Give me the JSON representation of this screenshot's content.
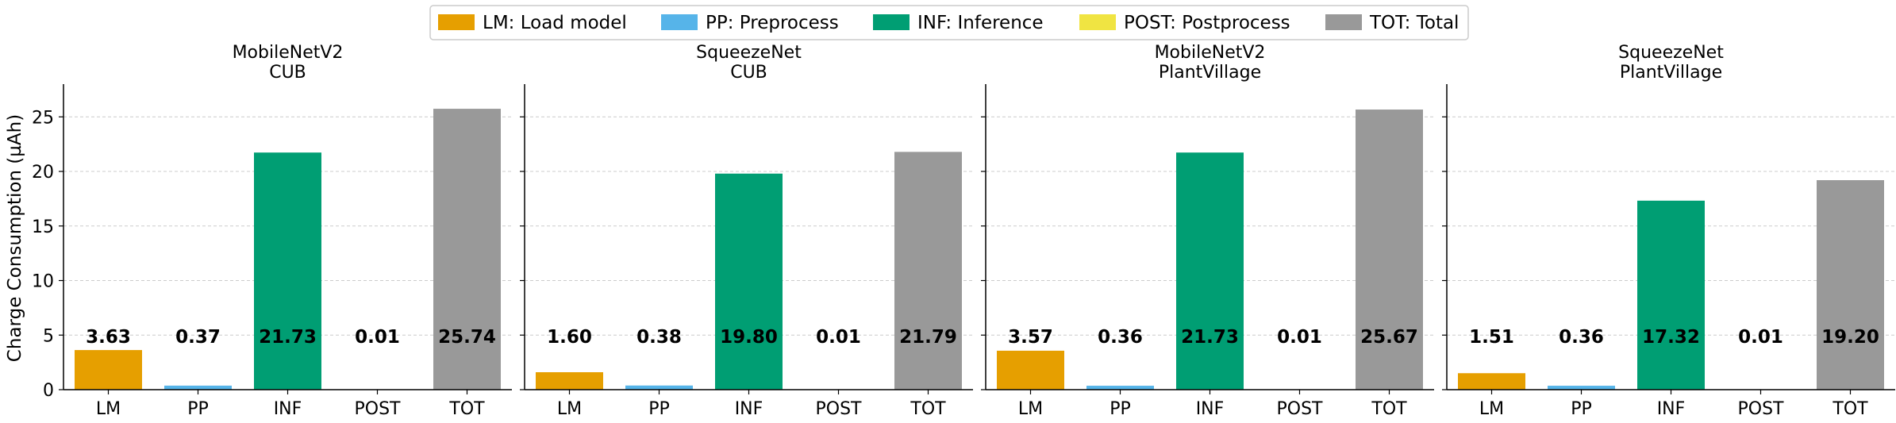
{
  "legend": [
    {
      "label": "LM: Load model",
      "color": "#E69F00"
    },
    {
      "label": "PP: Preprocess",
      "color": "#56B4E9"
    },
    {
      "label": "INF: Inference",
      "color": "#009E73"
    },
    {
      "label": "POST: Postprocess",
      "color": "#F0E442"
    },
    {
      "label": "TOT: Total",
      "color": "#999999"
    }
  ],
  "chart_data": {
    "type": "bar",
    "ylabel": "Charge Consumption (µAh)",
    "ylim": [
      0,
      28
    ],
    "yticks": [
      0,
      5,
      10,
      15,
      20,
      25
    ],
    "grid": "y-dashed",
    "legend_position": "top-center",
    "categories": [
      "LM",
      "PP",
      "INF",
      "POST",
      "TOT"
    ],
    "colors": [
      "#E69F00",
      "#56B4E9",
      "#009E73",
      "#F0E442",
      "#999999"
    ],
    "panels": [
      {
        "title_line1": "MobileNetV2",
        "title_line2": "CUB",
        "values": [
          3.63,
          0.37,
          21.73,
          0.01,
          25.74
        ],
        "labels": [
          "3.63",
          "0.37",
          "21.73",
          "0.01",
          "25.74"
        ]
      },
      {
        "title_line1": "SqueezeNet",
        "title_line2": "CUB",
        "values": [
          1.6,
          0.38,
          19.8,
          0.01,
          21.79
        ],
        "labels": [
          "1.60",
          "0.38",
          "19.80",
          "0.01",
          "21.79"
        ]
      },
      {
        "title_line1": "MobileNetV2",
        "title_line2": "PlantVillage",
        "values": [
          3.57,
          0.36,
          21.73,
          0.01,
          25.67
        ],
        "labels": [
          "3.57",
          "0.36",
          "21.73",
          "0.01",
          "25.67"
        ]
      },
      {
        "title_line1": "SqueezeNet",
        "title_line2": "PlantVillage",
        "values": [
          1.51,
          0.36,
          17.32,
          0.01,
          19.2
        ],
        "labels": [
          "1.51",
          "0.36",
          "17.32",
          "0.01",
          "19.20"
        ]
      }
    ]
  }
}
